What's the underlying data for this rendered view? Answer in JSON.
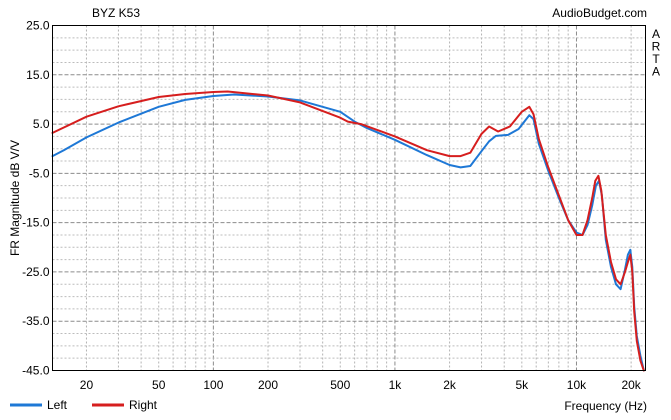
{
  "chart_data": {
    "type": "line",
    "title": "BYZ K53",
    "watermark": "AudioBudget.com",
    "side_label": "ARTA",
    "xlabel": "Frequency (Hz)",
    "ylabel": "FR Magnitude dB V/V",
    "xscale": "log",
    "xlim": [
      13,
      24000
    ],
    "ylim": [
      -45,
      25
    ],
    "grid": true,
    "legend_position": "bottom-left",
    "y_ticks": [
      {
        "value": 25,
        "label": "25.0"
      },
      {
        "value": 15,
        "label": "15.0"
      },
      {
        "value": 5,
        "label": "5.0"
      },
      {
        "value": -5,
        "label": "-5.0"
      },
      {
        "value": -15,
        "label": "-15.0"
      },
      {
        "value": -25,
        "label": "-25.0"
      },
      {
        "value": -35,
        "label": "-35.0"
      },
      {
        "value": -45,
        "label": "-45.0"
      }
    ],
    "x_ticks": [
      {
        "value": 20,
        "label": "20"
      },
      {
        "value": 50,
        "label": "50"
      },
      {
        "value": 100,
        "label": "100"
      },
      {
        "value": 200,
        "label": "200"
      },
      {
        "value": 500,
        "label": "500"
      },
      {
        "value": 1000,
        "label": "1k"
      },
      {
        "value": 2000,
        "label": "2k"
      },
      {
        "value": 5000,
        "label": "5k"
      },
      {
        "value": 10000,
        "label": "10k"
      },
      {
        "value": 20000,
        "label": "20k"
      }
    ],
    "series": [
      {
        "name": "Left",
        "color": "#1e78d6",
        "x": [
          13,
          15,
          20,
          30,
          50,
          70,
          100,
          130,
          200,
          300,
          500,
          600,
          700,
          1000,
          1500,
          2000,
          2300,
          2600,
          3000,
          3300,
          3600,
          4200,
          4800,
          5500,
          5800,
          6200,
          7000,
          8000,
          9000,
          10000,
          10800,
          11500,
          12200,
          12800,
          13300,
          13800,
          14500,
          15500,
          16500,
          17500,
          18500,
          19200,
          19800,
          20300,
          20800,
          21500,
          22500,
          23500
        ],
        "y": [
          -1.5,
          -0.3,
          2.3,
          5.3,
          8.5,
          9.9,
          10.7,
          11.0,
          10.6,
          9.8,
          7.5,
          5.5,
          4.2,
          1.8,
          -1.3,
          -3.3,
          -3.8,
          -3.5,
          -0.5,
          1.5,
          2.6,
          2.8,
          4.0,
          6.8,
          6.0,
          1.0,
          -4.5,
          -10.0,
          -14.5,
          -17.0,
          -17.5,
          -15.5,
          -11.5,
          -7.5,
          -6.5,
          -9.5,
          -18.5,
          -24.0,
          -27.5,
          -28.5,
          -24.5,
          -21.5,
          -20.5,
          -24.0,
          -32.0,
          -38.0,
          -42.0,
          -45.0
        ]
      },
      {
        "name": "Right",
        "color": "#d61e1e",
        "x": [
          13,
          15,
          20,
          30,
          50,
          70,
          100,
          120,
          200,
          300,
          500,
          550,
          650,
          1000,
          1500,
          2000,
          2300,
          2600,
          3000,
          3300,
          3700,
          4300,
          5000,
          5500,
          5800,
          6200,
          7000,
          8000,
          9000,
          10000,
          10800,
          11500,
          12200,
          12700,
          13200,
          13700,
          14500,
          15500,
          16500,
          17500,
          18500,
          19200,
          19800,
          20300,
          20800,
          21500,
          22500,
          23500
        ],
        "y": [
          3.2,
          4.3,
          6.5,
          8.6,
          10.5,
          11.1,
          11.5,
          11.6,
          10.8,
          9.4,
          6.3,
          5.5,
          5.0,
          2.5,
          -0.3,
          -1.5,
          -1.5,
          -0.8,
          3.0,
          4.5,
          3.5,
          4.5,
          7.5,
          8.5,
          7.0,
          2.0,
          -3.8,
          -9.5,
          -14.5,
          -17.5,
          -17.5,
          -14.5,
          -10.0,
          -6.5,
          -5.5,
          -8.5,
          -17.5,
          -23.0,
          -26.5,
          -27.5,
          -25.0,
          -23.0,
          -21.5,
          -25.0,
          -33.0,
          -39.0,
          -43.0,
          -45.0
        ]
      }
    ]
  }
}
